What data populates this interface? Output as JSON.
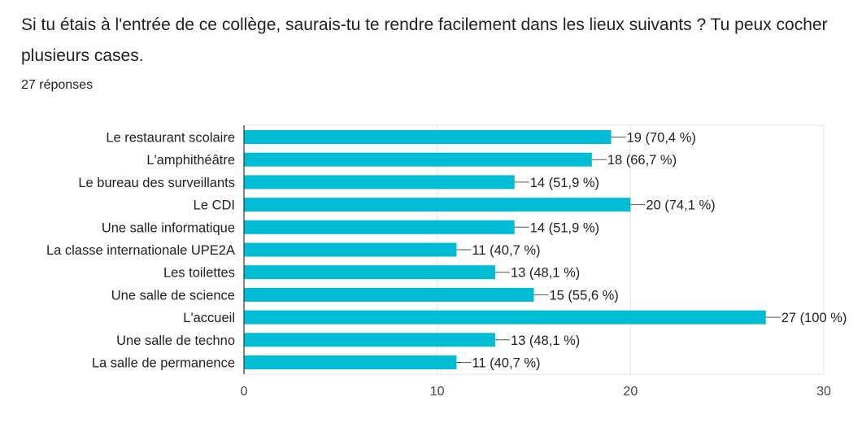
{
  "question": {
    "title": "Si tu étais à l'entrée de ce collège, saurais-tu te rendre facilement dans les lieux suivants ? Tu peux cocher plusieurs cases.",
    "responses": "27 réponses"
  },
  "colors": {
    "bar": "#00bcd4",
    "grid": "#e5e5e5",
    "axis": "#333333",
    "leader": "#555555"
  },
  "chart_data": {
    "type": "bar",
    "orientation": "horizontal",
    "categories": [
      "Le restaurant scolaire",
      "L'amphithéâtre",
      "Le bureau des surveillants",
      "Le CDI",
      "Une salle informatique",
      "La classe internationale UPE2A",
      "Les toilettes",
      "Une salle de science",
      "L'accueil",
      "Une salle de techno",
      "La salle de permanence"
    ],
    "values": [
      19,
      18,
      14,
      20,
      14,
      11,
      13,
      15,
      27,
      13,
      11
    ],
    "value_labels": [
      "19 (70,4 %)",
      "18 (66,7 %)",
      "14 (51,9 %)",
      "20 (74,1 %)",
      "14 (51,9 %)",
      "11 (40,7 %)",
      "13 (48,1 %)",
      "15 (55,6 %)",
      "27 (100 %)",
      "13 (48,1 %)",
      "11 (40,7 %)"
    ],
    "xlim": [
      0,
      30
    ],
    "xticks": [
      "0",
      "10",
      "20",
      "30"
    ],
    "title": "",
    "xlabel": "",
    "ylabel": "",
    "grid": true,
    "legend": false
  }
}
